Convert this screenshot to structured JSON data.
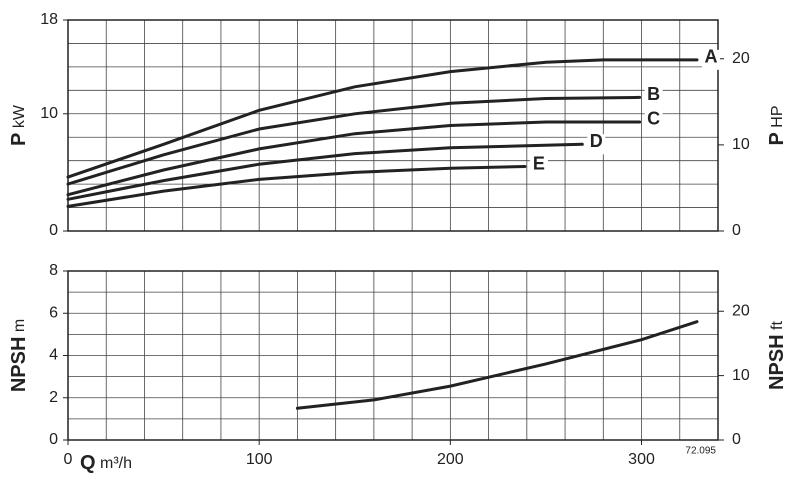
{
  "chart_data": [
    {
      "type": "line",
      "y_label": {
        "symbol": "P",
        "unit": "kW"
      },
      "y2_label": {
        "symbol": "P",
        "unit": "HP"
      },
      "xlim": [
        0,
        340
      ],
      "xgrid": [
        0,
        20,
        40,
        60,
        80,
        100,
        120,
        140,
        160,
        180,
        200,
        220,
        240,
        260,
        280,
        300,
        320,
        340
      ],
      "ylim": [
        0,
        18
      ],
      "yticks": [
        0,
        10,
        18
      ],
      "ygrid": [
        0,
        2,
        4,
        6,
        8,
        10,
        12,
        14,
        16,
        18
      ],
      "y2lim": [
        0,
        24.5
      ],
      "y2ticks": [
        0,
        10,
        20
      ],
      "series": [
        {
          "name": "A",
          "color": "#222222",
          "x": [
            0,
            50,
            100,
            150,
            200,
            250,
            280,
            329
          ],
          "values": [
            4.6,
            7.4,
            10.3,
            12.3,
            13.6,
            14.4,
            14.6,
            14.6
          ]
        },
        {
          "name": "B",
          "color": "#222222",
          "x": [
            0,
            50,
            100,
            150,
            200,
            250,
            299
          ],
          "values": [
            4.0,
            6.5,
            8.7,
            10.0,
            10.9,
            11.3,
            11.4
          ]
        },
        {
          "name": "C",
          "color": "#222222",
          "x": [
            0,
            50,
            100,
            150,
            200,
            250,
            299
          ],
          "values": [
            3.1,
            5.2,
            7.0,
            8.3,
            9.0,
            9.3,
            9.3
          ]
        },
        {
          "name": "D",
          "color": "#222222",
          "x": [
            0,
            50,
            100,
            150,
            200,
            269
          ],
          "values": [
            2.7,
            4.3,
            5.7,
            6.6,
            7.1,
            7.4
          ]
        },
        {
          "name": "E",
          "color": "#222222",
          "x": [
            0,
            50,
            100,
            150,
            200,
            239
          ],
          "values": [
            2.1,
            3.4,
            4.4,
            5.0,
            5.35,
            5.5
          ]
        }
      ]
    },
    {
      "type": "line",
      "y_label": {
        "symbol": "NPSH",
        "unit": "m"
      },
      "y2_label": {
        "symbol": "NPSH",
        "unit": "ft"
      },
      "x_label": {
        "symbol": "Q",
        "unit": "m³/h"
      },
      "note": "72.095",
      "xlim": [
        0,
        340
      ],
      "xticks": [
        0,
        100,
        200,
        300
      ],
      "xgrid": [
        0,
        20,
        40,
        60,
        80,
        100,
        120,
        140,
        160,
        180,
        200,
        220,
        240,
        260,
        280,
        300,
        320,
        340
      ],
      "ylim": [
        0,
        8
      ],
      "yticks": [
        0,
        2,
        4,
        6,
        8
      ],
      "ygrid": [
        0,
        1,
        2,
        3,
        4,
        5,
        6,
        7,
        8
      ],
      "y2lim": [
        0,
        26.25
      ],
      "y2ticks": [
        0,
        10,
        20
      ],
      "series": [
        {
          "name": "NPSH",
          "color": "#222222",
          "x": [
            120,
            160,
            200,
            250,
            300,
            329
          ],
          "values": [
            1.5,
            1.9,
            2.55,
            3.6,
            4.75,
            5.6
          ]
        }
      ]
    }
  ]
}
